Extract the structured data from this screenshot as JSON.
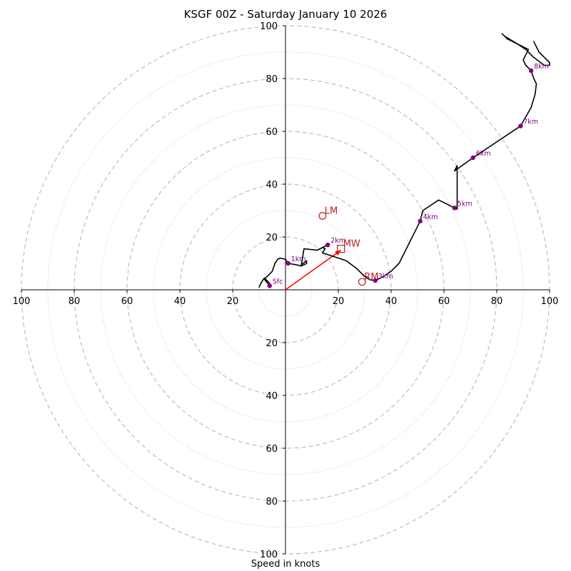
{
  "chart_data": {
    "type": "hodograph",
    "title": "KSGF 00Z - Saturday January 10 2026",
    "xlabel": "Speed in knots",
    "units": "knots",
    "range_max": 100,
    "ring_labels": [
      "100",
      "80",
      "60",
      "40",
      "20",
      "20",
      "40",
      "60",
      "80",
      "100"
    ],
    "y_tick_labels": [
      "100",
      "80",
      "60",
      "40",
      "20",
      "20",
      "40",
      "60",
      "80",
      "100"
    ],
    "trace": [
      [
        -10,
        1
      ],
      [
        -9,
        3
      ],
      [
        -8,
        4.5
      ],
      [
        -6,
        2.5
      ],
      [
        -6,
        1.5
      ],
      [
        -8,
        4
      ],
      [
        -5,
        7
      ],
      [
        -4,
        10
      ],
      [
        -3,
        11.5
      ],
      [
        -2,
        12
      ],
      [
        0,
        11.5
      ],
      [
        1,
        10
      ],
      [
        4,
        9.5
      ],
      [
        6,
        9
      ],
      [
        8,
        10
      ],
      [
        8,
        11
      ],
      [
        6,
        9.5
      ],
      [
        7,
        15.5
      ],
      [
        12,
        15
      ],
      [
        16,
        17
      ],
      [
        14,
        16
      ],
      [
        15,
        15.5
      ],
      [
        14,
        14
      ],
      [
        17,
        13
      ],
      [
        23,
        11
      ],
      [
        27,
        8
      ],
      [
        30,
        5
      ],
      [
        32,
        3.8
      ],
      [
        34,
        3.5
      ],
      [
        37,
        5
      ],
      [
        40,
        7
      ],
      [
        43,
        10
      ],
      [
        51,
        26
      ],
      [
        52,
        30
      ],
      [
        58,
        34
      ],
      [
        64,
        31
      ],
      [
        65,
        30.5
      ],
      [
        65,
        47
      ],
      [
        64,
        45
      ],
      [
        71,
        50
      ],
      [
        89,
        62
      ],
      [
        93,
        69
      ],
      [
        94.5,
        74
      ],
      [
        95,
        78
      ],
      [
        94,
        80
      ],
      [
        93,
        83
      ],
      [
        91,
        85
      ],
      [
        90,
        87
      ],
      [
        91,
        89
      ],
      [
        92,
        91
      ],
      [
        88,
        93
      ],
      [
        83,
        96
      ],
      [
        82,
        97
      ],
      [
        84,
        95
      ],
      [
        88,
        93
      ],
      [
        91,
        91
      ],
      [
        94,
        88
      ],
      [
        98,
        85
      ],
      [
        100,
        85
      ],
      [
        100,
        86
      ],
      [
        96,
        90
      ],
      [
        94,
        94
      ]
    ],
    "height_markers": [
      {
        "label": "Sfc",
        "u": -6,
        "v": 1.5
      },
      {
        "label": "1km",
        "u": 1,
        "v": 10
      },
      {
        "label": "2km",
        "u": 16,
        "v": 17
      },
      {
        "label": "3km",
        "u": 34,
        "v": 3.5
      },
      {
        "label": "4km",
        "u": 51,
        "v": 26
      },
      {
        "label": "5km",
        "u": 64,
        "v": 31
      },
      {
        "label": "6km",
        "u": 71,
        "v": 50
      },
      {
        "label": "7km",
        "u": 89,
        "v": 62
      },
      {
        "label": "8km",
        "u": 93,
        "v": 83
      }
    ],
    "storm_motions": [
      {
        "label": "LM",
        "u": 14,
        "v": 28,
        "marker": "circle"
      },
      {
        "label": "RM",
        "u": 29,
        "v": 3,
        "marker": "circle"
      },
      {
        "label": "MW",
        "u": 21,
        "v": 15.5,
        "marker": "square"
      }
    ],
    "shear_vector": {
      "u0": 0,
      "v0": 0,
      "u1": 21,
      "v1": 15
    },
    "colors": {
      "trace": "#000000",
      "marker": "#800080",
      "storm": "#b22222",
      "shear": "#ff0000",
      "ring": "#b8b8b8"
    }
  }
}
